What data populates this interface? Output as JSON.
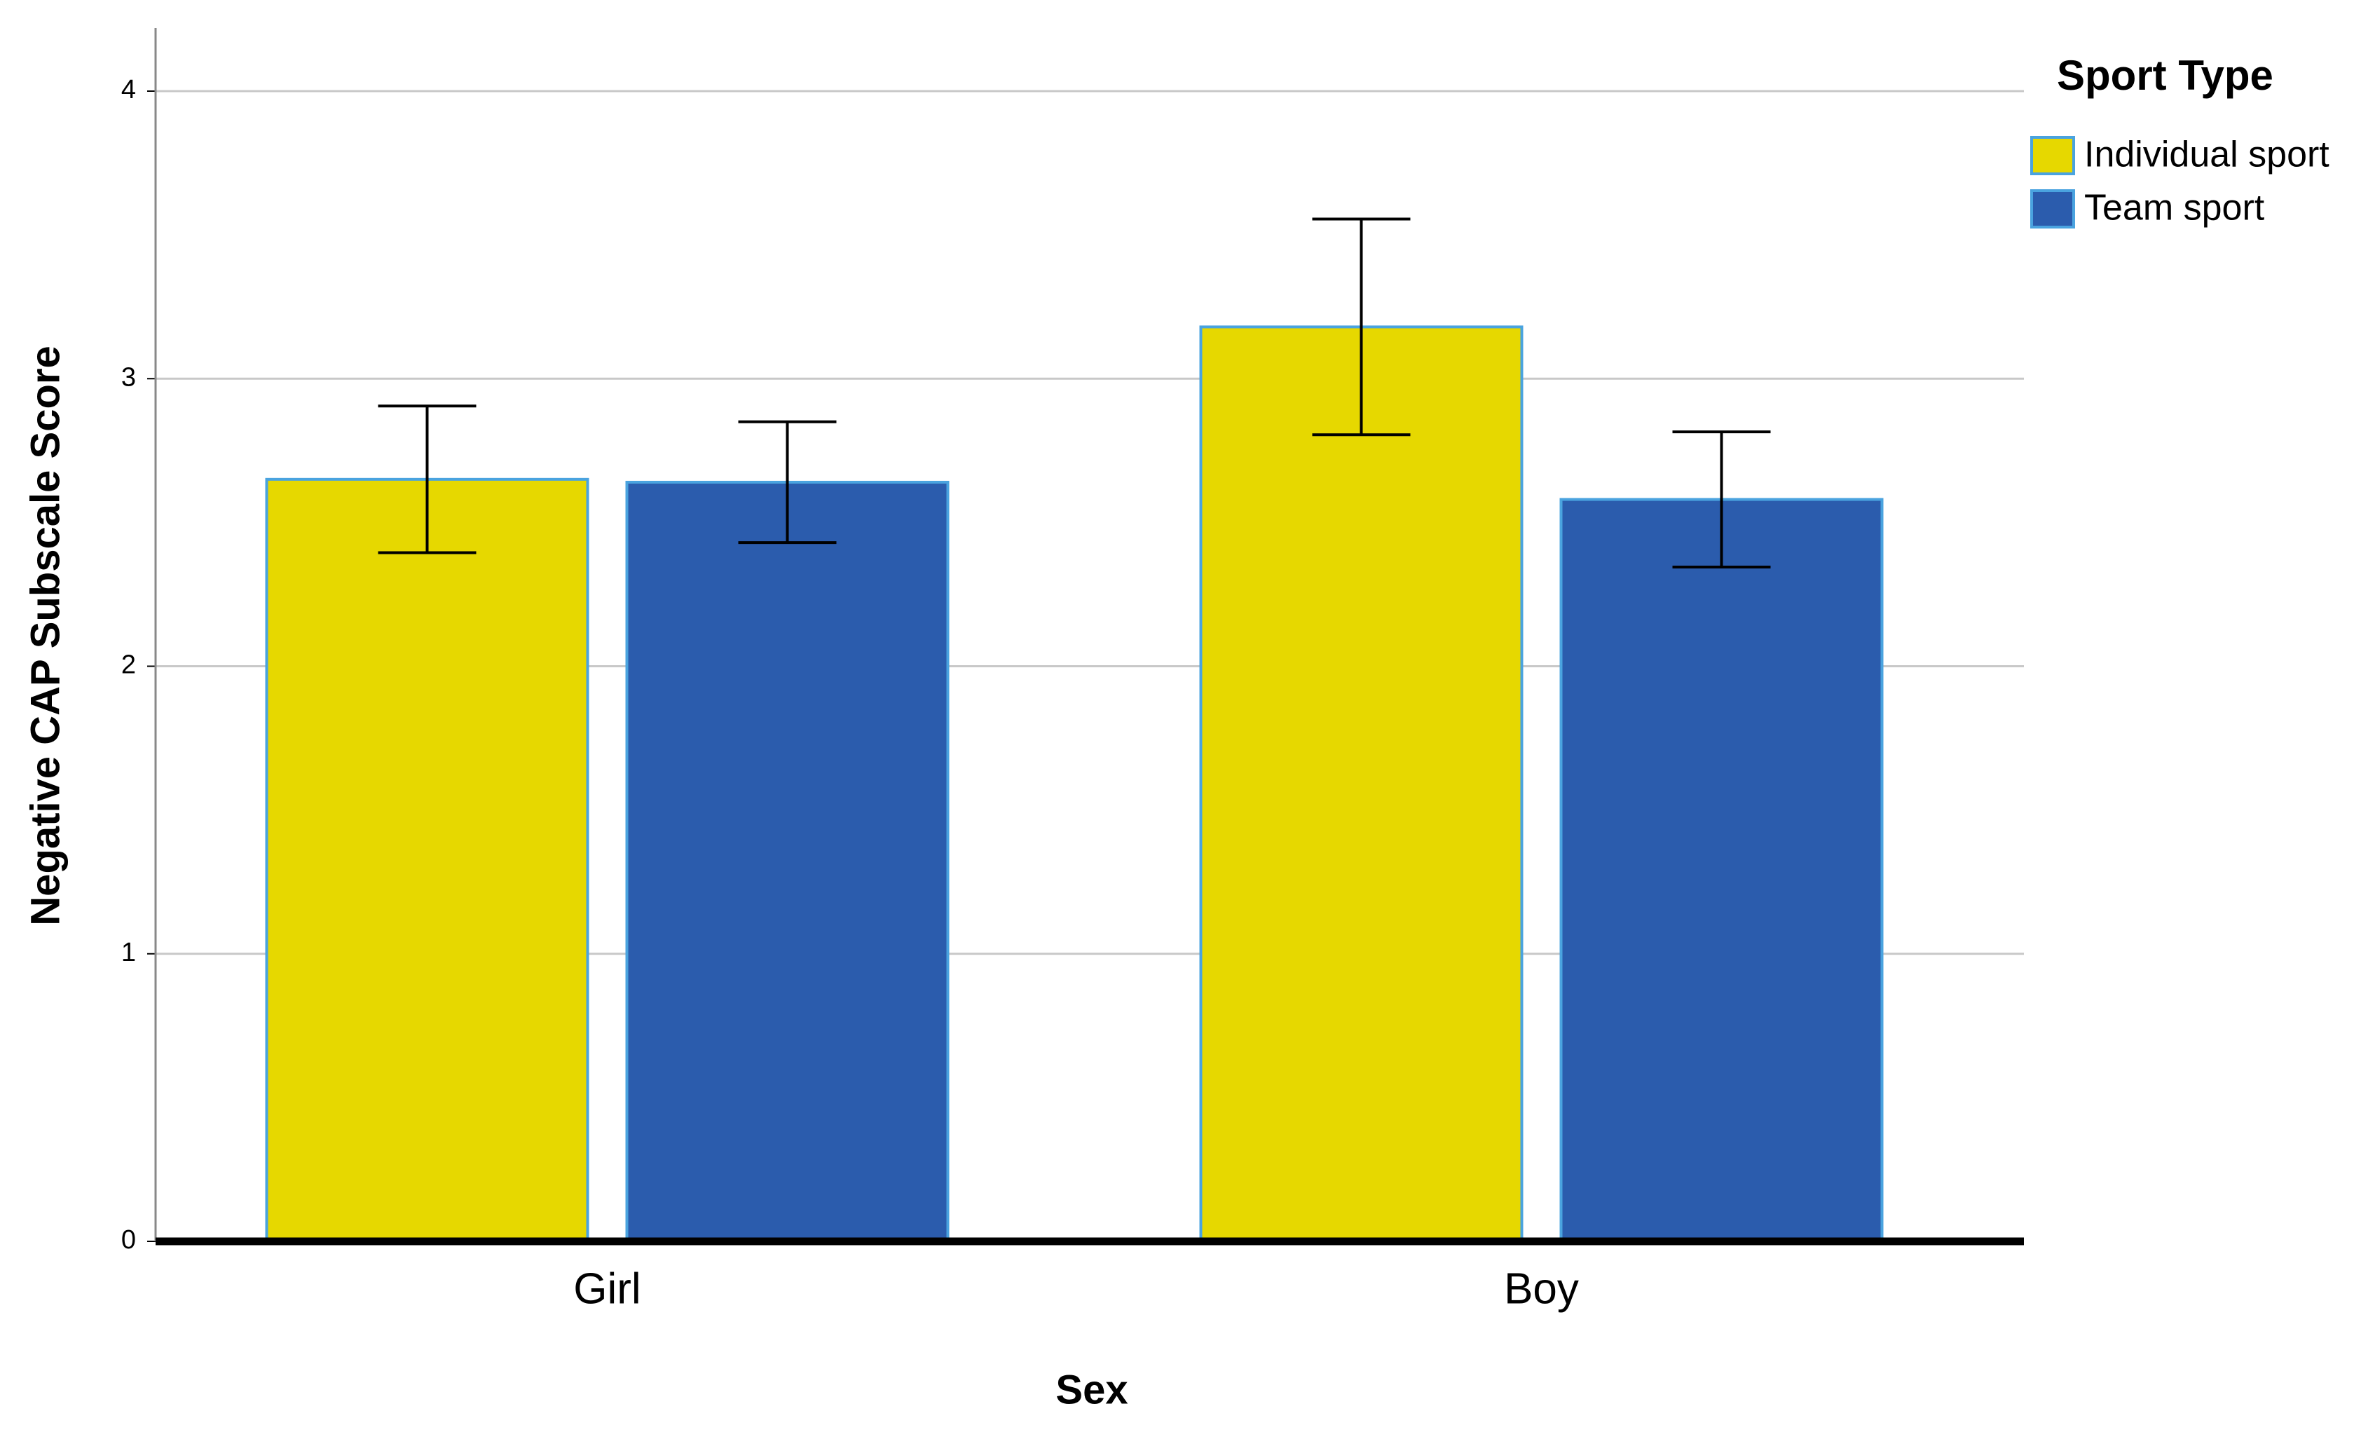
{
  "chart_data": {
    "type": "bar",
    "x_label": "Sex",
    "y_label": "Negative CAP Subscale Score",
    "categories": [
      "Girl",
      "Boy"
    ],
    "series": [
      {
        "name": "Individual sport",
        "color": "#e6d800",
        "values": [
          2.65,
          3.18
        ],
        "errors": [
          0.255,
          0.375
        ]
      },
      {
        "name": "Team sport",
        "color": "#2b5cad",
        "values": [
          2.64,
          2.58
        ],
        "errors": [
          0.21,
          0.235
        ]
      }
    ],
    "ylim": [
      0,
      4
    ],
    "yticks": [
      0,
      1,
      2,
      3,
      4
    ],
    "grid": true,
    "legend": {
      "title": "Sport Type",
      "position": "right"
    }
  }
}
